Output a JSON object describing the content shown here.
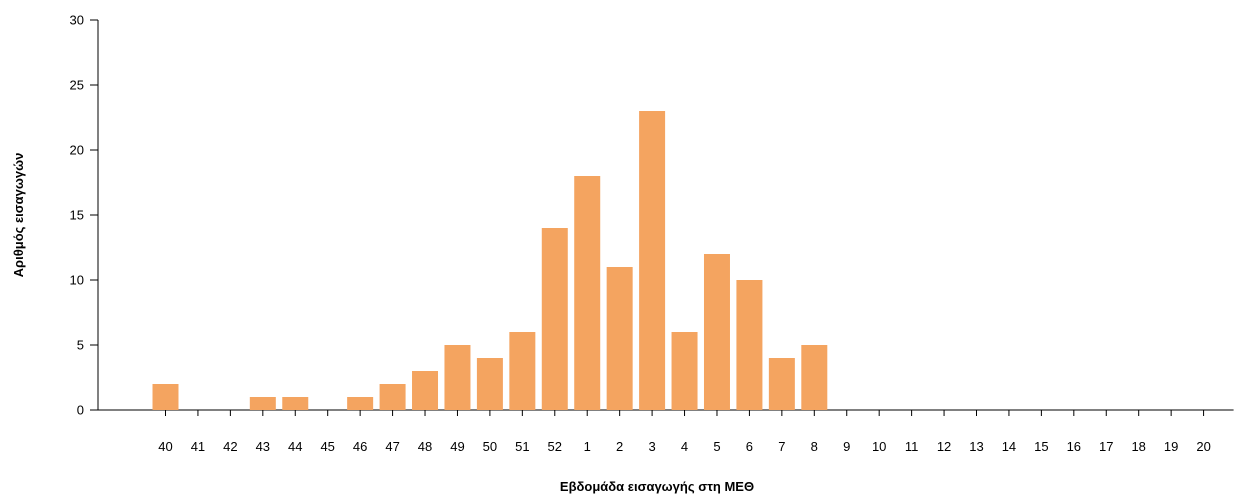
{
  "chart_data": {
    "type": "bar",
    "title": "",
    "xlabel": "Εβδομάδα εισαγωγής στη ΜΕΘ",
    "ylabel": "Αριθμός εισαγωγών",
    "ylim": [
      0,
      30
    ],
    "yticks": [
      0,
      5,
      10,
      15,
      20,
      25,
      30
    ],
    "categories": [
      "40",
      "41",
      "42",
      "43",
      "44",
      "45",
      "46",
      "47",
      "48",
      "49",
      "50",
      "51",
      "52",
      "1",
      "2",
      "3",
      "4",
      "5",
      "6",
      "7",
      "8",
      "9",
      "10",
      "11",
      "12",
      "13",
      "14",
      "15",
      "16",
      "17",
      "18",
      "19",
      "20"
    ],
    "values": [
      2,
      0,
      0,
      1,
      1,
      0,
      1,
      2,
      3,
      5,
      4,
      6,
      14,
      18,
      11,
      23,
      6,
      12,
      10,
      4,
      5,
      0,
      0,
      0,
      0,
      0,
      0,
      0,
      0,
      0,
      0,
      0,
      0
    ],
    "bar_color": "#F4A460",
    "grid": false,
    "legend": "none"
  }
}
